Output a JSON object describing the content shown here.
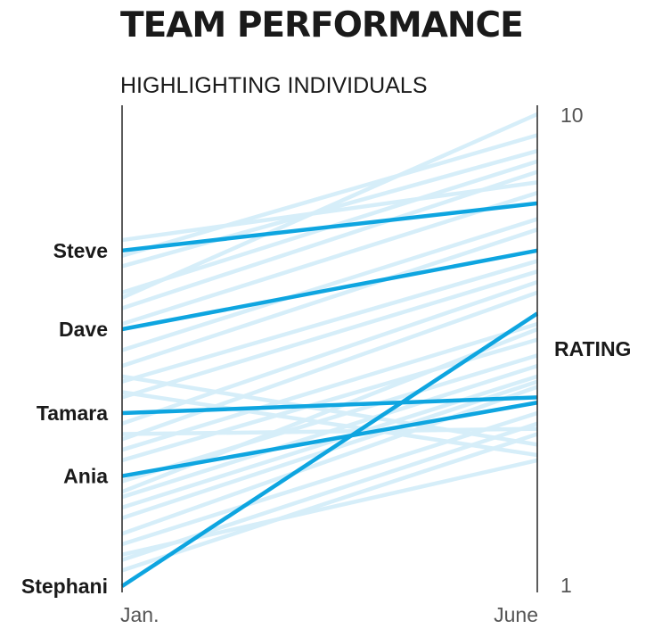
{
  "chart_data": {
    "type": "slope",
    "title": "TEAM PERFORMANCE",
    "subtitle": "HIGHLIGHTING INDIVIDUALS",
    "x_categories": [
      "Jan.",
      "June"
    ],
    "ylabel": "RATING",
    "ylim": [
      1,
      10
    ],
    "y_ticks": [
      "10",
      "1"
    ],
    "highlight_color": "#0ea5e0",
    "background_color": "#d6eef9",
    "highlighted": [
      {
        "name": "Steve",
        "values": [
          7.4,
          8.3
        ]
      },
      {
        "name": "Dave",
        "values": [
          5.9,
          7.4
        ]
      },
      {
        "name": "Tamara",
        "values": [
          4.3,
          4.6
        ]
      },
      {
        "name": "Ania",
        "values": [
          3.1,
          4.5
        ]
      },
      {
        "name": "Stephani",
        "values": [
          1.0,
          6.2
        ]
      }
    ],
    "others": [
      [
        7.6,
        8.7
      ],
      [
        7.3,
        9.6
      ],
      [
        7.1,
        9.3
      ],
      [
        6.6,
        9.1
      ],
      [
        6.3,
        8.9
      ],
      [
        6.0,
        8.5
      ],
      [
        5.5,
        8.0
      ],
      [
        5.2,
        7.8
      ],
      [
        4.9,
        7.2
      ],
      [
        4.6,
        7.0
      ],
      [
        4.1,
        6.8
      ],
      [
        3.8,
        6.6
      ],
      [
        3.6,
        6.0
      ],
      [
        3.4,
        5.7
      ],
      [
        3.0,
        5.4
      ],
      [
        2.7,
        5.2
      ],
      [
        2.5,
        5.0
      ],
      [
        2.3,
        4.9
      ],
      [
        2.0,
        4.8
      ],
      [
        1.8,
        4.3
      ],
      [
        1.5,
        4.1
      ],
      [
        1.3,
        3.9
      ],
      [
        5.0,
        3.7
      ],
      [
        4.7,
        3.5
      ],
      [
        6.5,
        10.0
      ],
      [
        2.8,
        5.9
      ],
      [
        3.9,
        4.0
      ],
      [
        1.6,
        3.4
      ]
    ]
  }
}
